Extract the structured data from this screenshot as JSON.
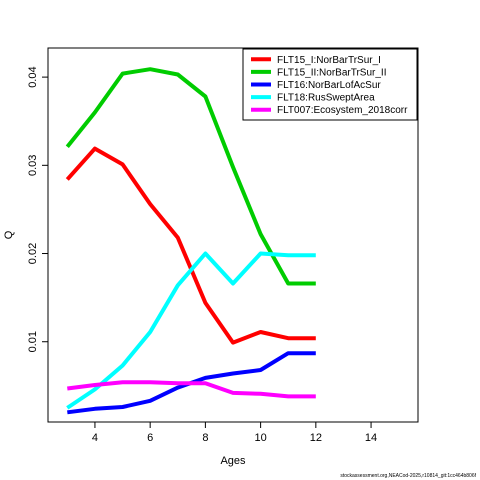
{
  "chart_data": {
    "type": "line",
    "xlabel": "Ages",
    "ylabel": "Q",
    "xlim": [
      2.3,
      15.7
    ],
    "ylim": [
      0.0009,
      0.0433
    ],
    "xticks": [
      4,
      6,
      8,
      10,
      12,
      14
    ],
    "yticks": [
      0.01,
      0.02,
      0.03,
      0.04
    ],
    "ytick_labels": [
      "0.01",
      "0.02",
      "0.03",
      "0.04"
    ],
    "grid": false,
    "legend_position": "top-right",
    "x": [
      3,
      4,
      5,
      6,
      7,
      8,
      9,
      10,
      11,
      12
    ],
    "series": [
      {
        "name": "FLT15_I:NorBarTrSur_I",
        "color": "#FF0000",
        "values": [
          0.0284,
          0.0319,
          0.0301,
          0.0256,
          0.0218,
          0.0144,
          0.0099,
          0.0111,
          0.0104,
          0.0104
        ]
      },
      {
        "name": "FLT15_II:NorBarTrSur_II",
        "color": "#00CC00",
        "values": [
          0.0321,
          0.036,
          0.0404,
          0.0409,
          0.0403,
          0.0378,
          0.0298,
          0.0222,
          0.0166,
          0.0166
        ]
      },
      {
        "name": "FLT16:NorBarLofAcSur",
        "color": "#0000FF",
        "values": [
          0.002,
          0.0024,
          0.0026,
          0.0033,
          0.0048,
          0.0059,
          0.0064,
          0.0068,
          0.0087,
          0.0087
        ]
      },
      {
        "name": "FLT18:RusSweptArea",
        "color": "#00FFFF",
        "values": [
          0.0025,
          0.0046,
          0.0073,
          0.0111,
          0.0164,
          0.02,
          0.0166,
          0.02,
          0.0198,
          0.0198
        ]
      },
      {
        "name": "FLT007:Ecosystem_2018corr",
        "color": "#FF00FF",
        "values": [
          0.0047,
          0.0051,
          0.0054,
          0.0054,
          0.0053,
          0.0053,
          0.0042,
          0.0041,
          0.0038,
          0.0038
        ]
      }
    ]
  },
  "footer_text": "stockassessment.org,NEACod-2025,r10814_git:1cc464b806f"
}
